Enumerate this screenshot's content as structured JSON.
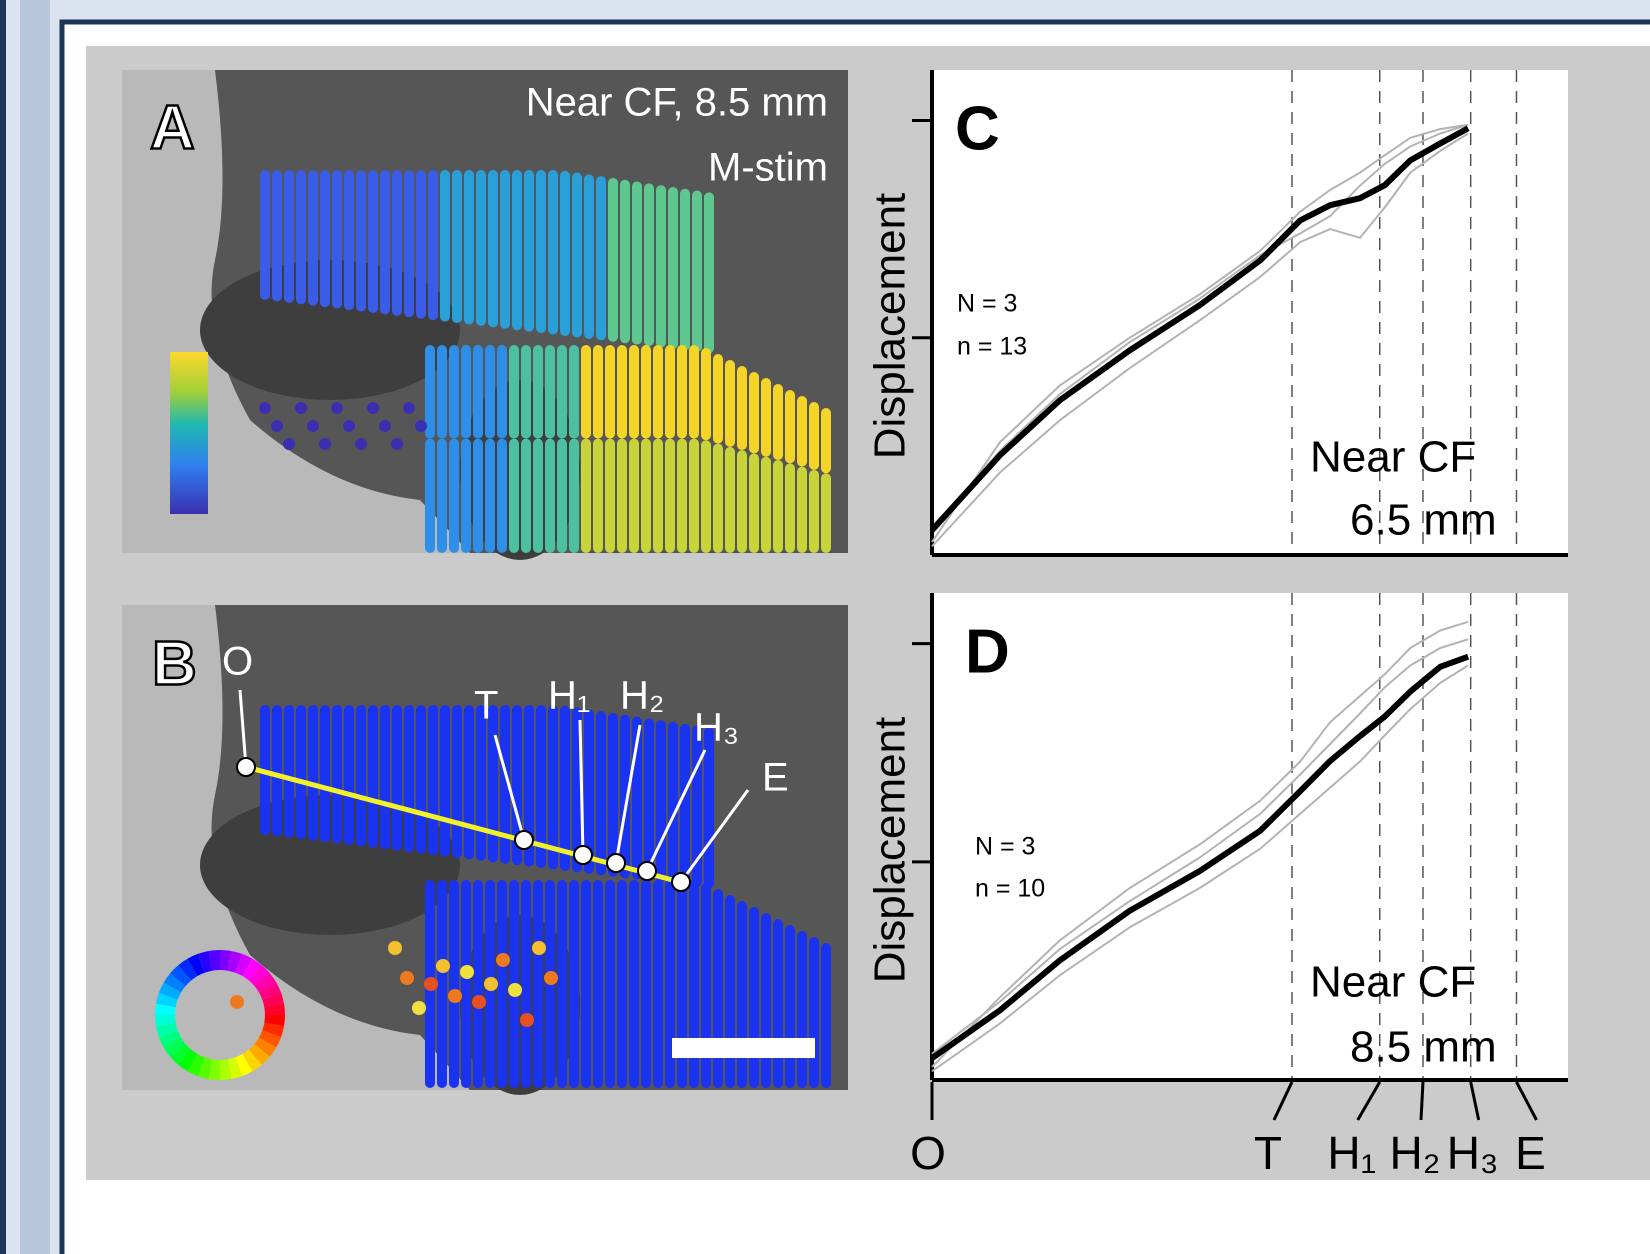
{
  "panels": {
    "A": {
      "label": "A",
      "title": "Near CF, 8.5 mm",
      "subtitle": "M-stim"
    },
    "B": {
      "label": "B",
      "points": [
        "O",
        "T",
        "H₁",
        "H₂",
        "H₃",
        "E"
      ]
    }
  },
  "chart_data": [
    {
      "type": "line",
      "label": "C",
      "ylabel": "Displacement",
      "annotations": [
        "N = 3",
        "n = 13"
      ],
      "note": [
        "Near CF",
        "6.5 mm"
      ],
      "x": [
        0,
        10.7,
        20.1,
        31.1,
        42.1,
        51.6,
        57.9,
        62.6,
        67.3,
        71.2,
        75.2,
        79.9,
        84.3
      ],
      "xlim": [
        0,
        100
      ],
      "ylim": [
        0,
        110
      ],
      "yticks": [
        50,
        100
      ],
      "series": [
        {
          "color": "#b3b3b3",
          "values": [
            3,
            26,
            39,
            50,
            60,
            70,
            79,
            84,
            88,
            92,
            96,
            98,
            99
          ]
        },
        {
          "color": "#b3b3b3",
          "values": [
            2,
            19,
            31,
            43,
            54,
            64,
            72,
            75,
            73,
            80,
            88,
            93,
            97
          ]
        },
        {
          "color": "#b3b3b3",
          "values": [
            6,
            24,
            37,
            49,
            59,
            69,
            74,
            78,
            85,
            90,
            94,
            97,
            99
          ]
        },
        {
          "color": "#000000",
          "values": [
            5.7,
            23.0,
            35.6,
            47.1,
            57.5,
            67.8,
            77.0,
            80.5,
            82.1,
            85.1,
            90.8,
            94.7,
            98.2
          ]
        }
      ]
    },
    {
      "type": "line",
      "label": "D",
      "ylabel": "Displacement",
      "annotations": [
        "N = 3",
        "n = 10"
      ],
      "note": [
        "Near CF",
        "8.5 mm"
      ],
      "x": [
        0,
        10.7,
        20.1,
        31.1,
        42.1,
        51.6,
        57.9,
        62.6,
        67.3,
        71.2,
        75.2,
        79.9,
        84.3
      ],
      "xlim": [
        0,
        100
      ],
      "ylim": [
        0,
        110
      ],
      "yticks": [
        50,
        100
      ],
      "xticks": [
        {
          "value": 0,
          "label": "O"
        },
        {
          "value": 56.6,
          "label": "T"
        },
        {
          "value": 70.4,
          "label": "H₁"
        },
        {
          "value": 77.2,
          "label": "H₂"
        },
        {
          "value": 84.7,
          "label": "H₃"
        },
        {
          "value": 91.9,
          "label": "E"
        }
      ],
      "series": [
        {
          "color": "#b3b3b3",
          "values": [
            3,
            19,
            32,
            44,
            54,
            64,
            73,
            82,
            88,
            93,
            99,
            103,
            105
          ]
        },
        {
          "color": "#b3b3b3",
          "values": [
            2,
            13,
            24,
            35,
            44,
            53,
            61,
            67,
            73,
            79,
            85,
            91,
            95
          ]
        },
        {
          "color": "#b3b3b3",
          "values": [
            6,
            18,
            30,
            41,
            51,
            61,
            70,
            77,
            84,
            90,
            95,
            99,
            101
          ]
        },
        {
          "color": "#000000",
          "values": [
            5.0,
            16.0,
            27.4,
            38.8,
            47.9,
            57.1,
            66.2,
            73.1,
            78.8,
            83.3,
            89.0,
            94.7,
            97.0
          ]
        }
      ]
    }
  ]
}
